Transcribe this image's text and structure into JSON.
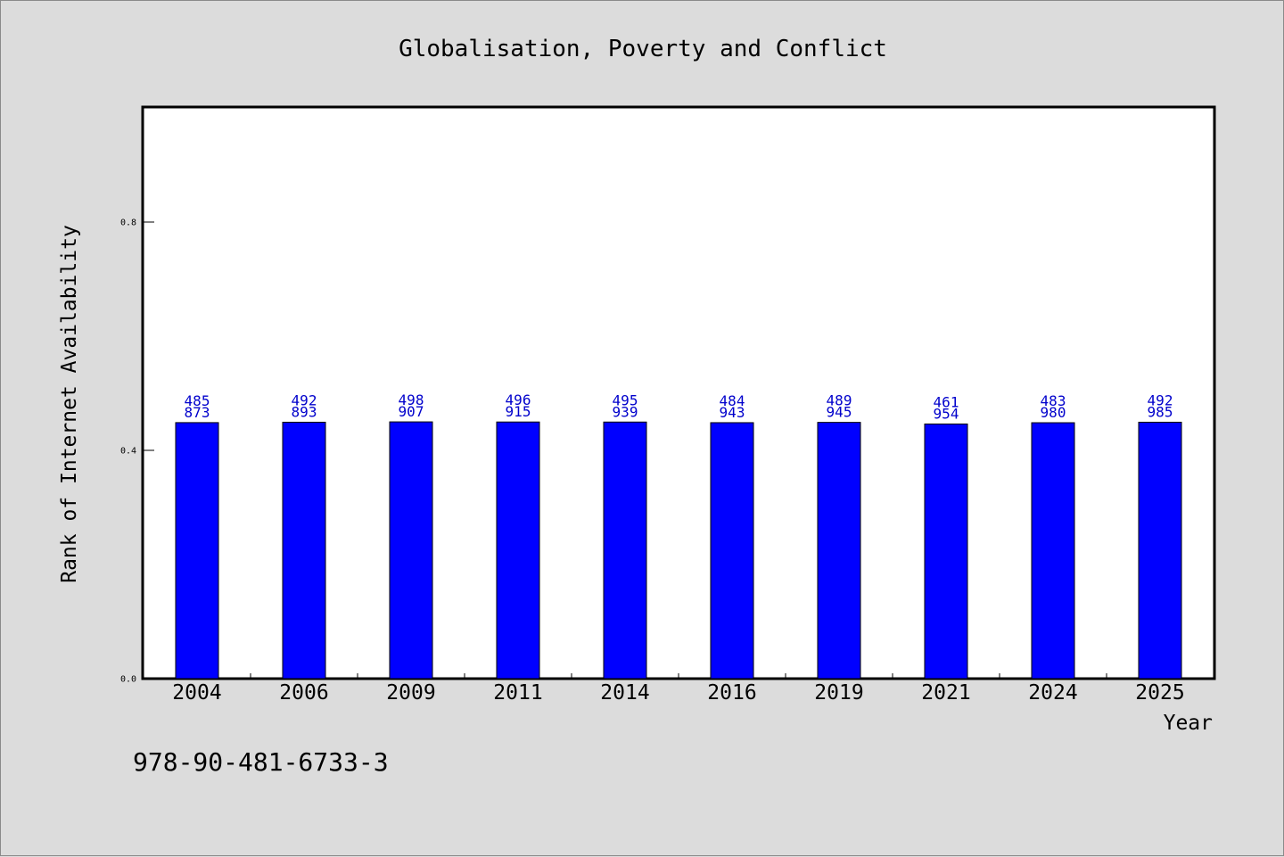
{
  "chart_data": {
    "type": "bar",
    "title": "Globalisation, Poverty and Conflict",
    "xlabel": "Year",
    "ylabel": "Rank of Internet Availability",
    "categories": [
      "2004",
      "2006",
      "2009",
      "2011",
      "2014",
      "2016",
      "2019",
      "2021",
      "2024",
      "2025"
    ],
    "values": [
      0.4485873,
      0.4492893,
      0.4498907,
      0.4496915,
      0.4495939,
      0.4484943,
      0.4489945,
      0.4461954,
      0.448398,
      0.4492985
    ],
    "bar_heights": [
      0.4485873,
      0.4492893,
      0.4498907,
      0.4496915,
      0.4495939,
      0.4484943,
      0.4489945,
      0.4461954,
      0.448398,
      0.4492985
    ],
    "value_labels": [
      [
        "485",
        "873"
      ],
      [
        "492",
        "893"
      ],
      [
        "498",
        "907"
      ],
      [
        "496",
        "915"
      ],
      [
        "495",
        "939"
      ],
      [
        "484",
        "943"
      ],
      [
        "489",
        "945"
      ],
      [
        "461",
        "954"
      ],
      [
        "483",
        "980"
      ],
      [
        "492",
        "985"
      ]
    ],
    "yticks": [
      "0.0",
      "0.4",
      "0.8"
    ],
    "ylim": [
      0,
      1.0
    ],
    "grid": false,
    "bar_color": "#0000ff",
    "label_color": "#0000cc",
    "background": "#dcdcdc",
    "plot_background": "#ffffff"
  },
  "footer": {
    "isbn": "978-90-481-6733-3"
  }
}
